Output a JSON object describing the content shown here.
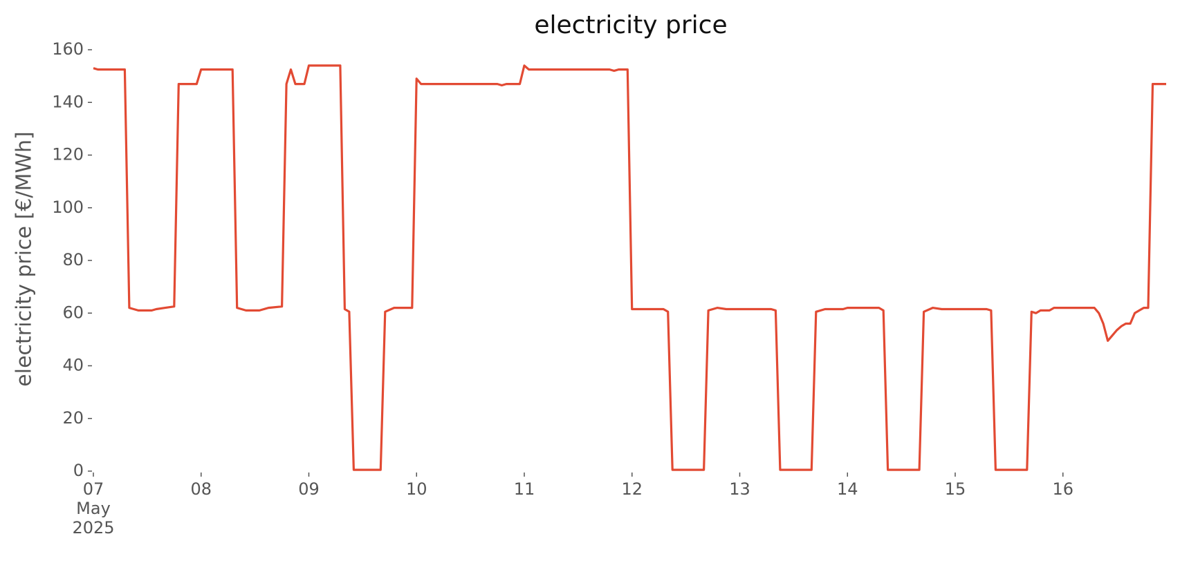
{
  "chart_data": {
    "type": "line",
    "title": "electricity price",
    "y_label": "electricity price [€/MWh]",
    "x": [
      "2025-05-07 00:00",
      "2025-05-07 01:00",
      "2025-05-07 07:00",
      "2025-05-07 08:00",
      "2025-05-07 10:00",
      "2025-05-07 13:00",
      "2025-05-07 14:00",
      "2025-05-07 16:00",
      "2025-05-07 18:00",
      "2025-05-07 19:00",
      "2025-05-07 23:00",
      "2025-05-08 00:00",
      "2025-05-08 07:00",
      "2025-05-08 08:00",
      "2025-05-08 10:00",
      "2025-05-08 13:00",
      "2025-05-08 15:00",
      "2025-05-08 18:00",
      "2025-05-08 19:00",
      "2025-05-08 20:00",
      "2025-05-08 21:00",
      "2025-05-08 23:00",
      "2025-05-09 00:00",
      "2025-05-09 07:00",
      "2025-05-09 08:00",
      "2025-05-09 09:00",
      "2025-05-09 10:00",
      "2025-05-09 16:00",
      "2025-05-09 17:00",
      "2025-05-09 19:00",
      "2025-05-09 23:00",
      "2025-05-10 00:00",
      "2025-05-10 01:00",
      "2025-05-10 18:00",
      "2025-05-10 19:00",
      "2025-05-10 20:00",
      "2025-05-10 23:00",
      "2025-05-11 00:00",
      "2025-05-11 01:00",
      "2025-05-11 19:00",
      "2025-05-11 20:00",
      "2025-05-11 21:00",
      "2025-05-11 23:00",
      "2025-05-12 00:00",
      "2025-05-12 07:00",
      "2025-05-12 08:00",
      "2025-05-12 09:00",
      "2025-05-12 16:00",
      "2025-05-12 17:00",
      "2025-05-12 19:00",
      "2025-05-12 21:00",
      "2025-05-13 07:00",
      "2025-05-13 08:00",
      "2025-05-13 09:00",
      "2025-05-13 16:00",
      "2025-05-13 17:00",
      "2025-05-13 19:00",
      "2025-05-13 23:00",
      "2025-05-14 00:00",
      "2025-05-14 07:00",
      "2025-05-14 08:00",
      "2025-05-14 09:00",
      "2025-05-14 16:00",
      "2025-05-14 17:00",
      "2025-05-14 19:00",
      "2025-05-14 21:00",
      "2025-05-15 07:00",
      "2025-05-15 08:00",
      "2025-05-15 09:00",
      "2025-05-15 16:00",
      "2025-05-15 17:00",
      "2025-05-15 18:00",
      "2025-05-15 19:00",
      "2025-05-15 21:00",
      "2025-05-15 22:00",
      "2025-05-16 07:00",
      "2025-05-16 08:00",
      "2025-05-16 09:00",
      "2025-05-16 10:00",
      "2025-05-16 11:00",
      "2025-05-16 12:00",
      "2025-05-16 13:00",
      "2025-05-16 14:00",
      "2025-05-16 15:00",
      "2025-05-16 16:00",
      "2025-05-16 17:00",
      "2025-05-16 18:00",
      "2025-05-16 19:00",
      "2025-05-16 20:00",
      "2025-05-16 23:00"
    ],
    "series": [
      {
        "color": "#e24a33",
        "values": [
          153,
          152.5,
          152.5,
          62,
          61,
          61,
          61.5,
          62,
          62.5,
          147,
          147,
          152.5,
          152.5,
          62,
          61,
          61,
          62,
          62.5,
          147,
          152.5,
          147,
          147,
          154,
          154,
          61.5,
          60.5,
          0.5,
          0.5,
          60.5,
          62,
          62,
          149,
          147,
          147,
          146.5,
          147,
          147,
          154,
          152.5,
          152.5,
          152,
          152.5,
          152.5,
          61.5,
          61.5,
          60.5,
          0.5,
          0.5,
          61,
          62,
          61.5,
          61.5,
          61,
          0.5,
          0.5,
          60.5,
          61.5,
          61.5,
          62,
          62,
          61,
          0.5,
          0.5,
          60.5,
          62,
          61.5,
          61.5,
          61,
          0.5,
          0.5,
          60.5,
          60,
          61,
          61,
          62,
          62,
          60,
          56,
          49.5,
          51.5,
          53.5,
          55,
          56,
          56,
          60,
          61,
          62,
          62,
          147,
          147
        ]
      }
    ],
    "xlim": [
      "2025-05-07 00:00",
      "2025-05-16 23:00"
    ],
    "xticks": [
      {
        "value": "2025-05-07",
        "label": "07\nMay\n2025"
      },
      {
        "value": "2025-05-08",
        "label": "08"
      },
      {
        "value": "2025-05-09",
        "label": "09"
      },
      {
        "value": "2025-05-10",
        "label": "10"
      },
      {
        "value": "2025-05-11",
        "label": "11"
      },
      {
        "value": "2025-05-12",
        "label": "12"
      },
      {
        "value": "2025-05-13",
        "label": "13"
      },
      {
        "value": "2025-05-14",
        "label": "14"
      },
      {
        "value": "2025-05-15",
        "label": "15"
      },
      {
        "value": "2025-05-16",
        "label": "16"
      }
    ],
    "ylim": [
      0,
      160
    ],
    "yticks": [
      0,
      20,
      40,
      60,
      80,
      100,
      120,
      140,
      160
    ],
    "grid": false
  }
}
